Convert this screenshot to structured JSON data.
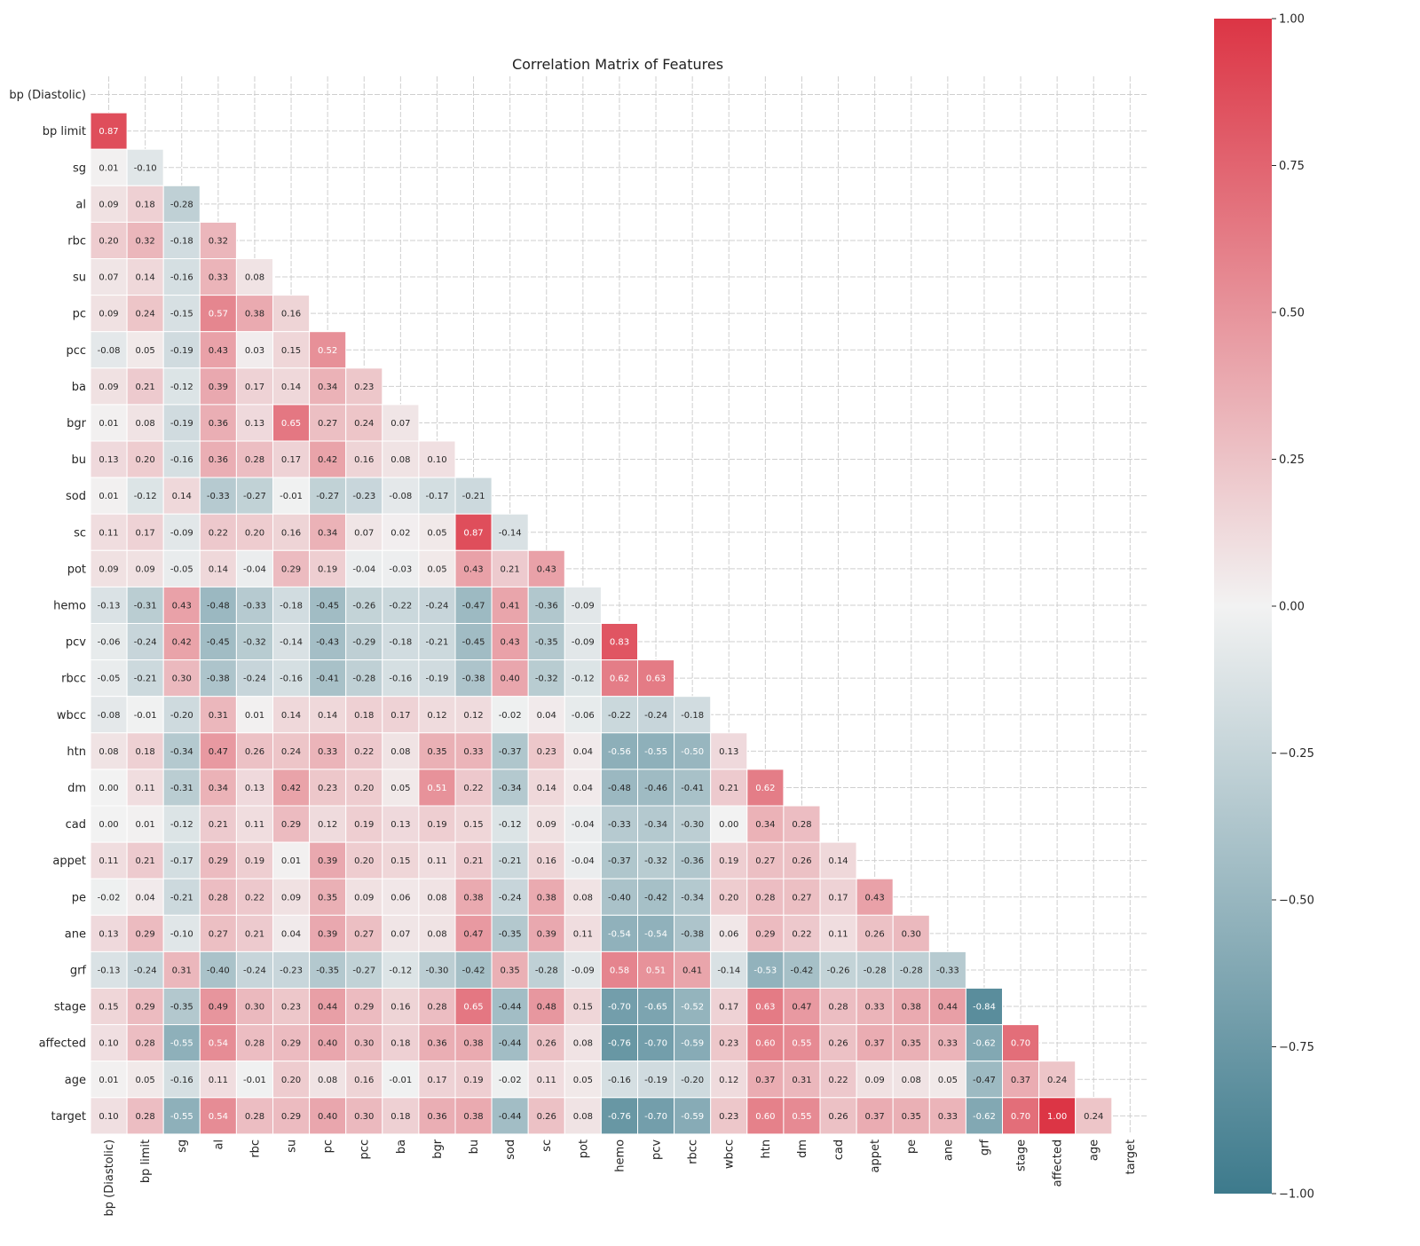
{
  "chart_data": {
    "type": "heatmap",
    "title": "Correlation Matrix of Features",
    "xlabel": "",
    "ylabel": "",
    "labels": [
      "bp (Diastolic)",
      "bp limit",
      "sg",
      "al",
      "rbc",
      "su",
      "pc",
      "pcc",
      "ba",
      "bgr",
      "bu",
      "sod",
      "sc",
      "pot",
      "hemo",
      "pcv",
      "rbcc",
      "wbcc",
      "htn",
      "dm",
      "cad",
      "appet",
      "pe",
      "ane",
      "grf",
      "stage",
      "affected",
      "age",
      "target"
    ],
    "mask": "upper-triangle-including-diagonal",
    "value_format": "2 decimals",
    "lower_triangle": [
      [],
      [
        "0.87"
      ],
      [
        "0.01",
        "-0.10"
      ],
      [
        "0.09",
        "0.18",
        "-0.28"
      ],
      [
        "0.20",
        "0.32",
        "-0.18",
        "0.32"
      ],
      [
        "0.07",
        "0.14",
        "-0.16",
        "0.33",
        "0.08"
      ],
      [
        "0.09",
        "0.24",
        "-0.15",
        "0.57",
        "0.38",
        "0.16"
      ],
      [
        "-0.08",
        "0.05",
        "-0.19",
        "0.43",
        "0.03",
        "0.15",
        "0.52"
      ],
      [
        "0.09",
        "0.21",
        "-0.12",
        "0.39",
        "0.17",
        "0.14",
        "0.34",
        "0.23"
      ],
      [
        "0.01",
        "0.08",
        "-0.19",
        "0.36",
        "0.13",
        "0.65",
        "0.27",
        "0.24",
        "0.07"
      ],
      [
        "0.13",
        "0.20",
        "-0.16",
        "0.36",
        "0.28",
        "0.17",
        "0.42",
        "0.16",
        "0.08",
        "0.10"
      ],
      [
        "0.01",
        "-0.12",
        "0.14",
        "-0.33",
        "-0.27",
        "-0.01",
        "-0.27",
        "-0.23",
        "-0.08",
        "-0.17",
        "-0.21"
      ],
      [
        "0.11",
        "0.17",
        "-0.09",
        "0.22",
        "0.20",
        "0.16",
        "0.34",
        "0.07",
        "0.02",
        "0.05",
        "0.87",
        "-0.14"
      ],
      [
        "0.09",
        "0.09",
        "-0.05",
        "0.14",
        "-0.04",
        "0.29",
        "0.19",
        "-0.04",
        "-0.03",
        "0.05",
        "0.43",
        "0.21",
        "0.43"
      ],
      [
        "-0.13",
        "-0.31",
        "0.43",
        "-0.48",
        "-0.33",
        "-0.18",
        "-0.45",
        "-0.26",
        "-0.22",
        "-0.24",
        "-0.47",
        "0.41",
        "-0.36",
        "-0.09"
      ],
      [
        "-0.06",
        "-0.24",
        "0.42",
        "-0.45",
        "-0.32",
        "-0.14",
        "-0.43",
        "-0.29",
        "-0.18",
        "-0.21",
        "-0.45",
        "0.43",
        "-0.35",
        "-0.09",
        "0.83"
      ],
      [
        "-0.05",
        "-0.21",
        "0.30",
        "-0.38",
        "-0.24",
        "-0.16",
        "-0.41",
        "-0.28",
        "-0.16",
        "-0.19",
        "-0.38",
        "0.40",
        "-0.32",
        "-0.12",
        "0.62",
        "0.63"
      ],
      [
        "-0.08",
        "-0.01",
        "-0.20",
        "0.31",
        "0.01",
        "0.14",
        "0.14",
        "0.18",
        "0.17",
        "0.12",
        "0.12",
        "-0.02",
        "0.04",
        "-0.06",
        "-0.22",
        "-0.24",
        "-0.18"
      ],
      [
        "0.08",
        "0.18",
        "-0.34",
        "0.47",
        "0.26",
        "0.24",
        "0.33",
        "0.22",
        "0.08",
        "0.35",
        "0.33",
        "-0.37",
        "0.23",
        "0.04",
        "-0.56",
        "-0.55",
        "-0.50",
        "0.13"
      ],
      [
        "0.00",
        "0.11",
        "-0.31",
        "0.34",
        "0.13",
        "0.42",
        "0.23",
        "0.20",
        "0.05",
        "0.51",
        "0.22",
        "-0.34",
        "0.14",
        "0.04",
        "-0.48",
        "-0.46",
        "-0.41",
        "0.21",
        "0.62"
      ],
      [
        "0.00",
        "0.01",
        "-0.12",
        "0.21",
        "0.11",
        "0.29",
        "0.12",
        "0.19",
        "0.13",
        "0.19",
        "0.15",
        "-0.12",
        "0.09",
        "-0.04",
        "-0.33",
        "-0.34",
        "-0.30",
        "0.00",
        "0.34",
        "0.28"
      ],
      [
        "0.11",
        "0.21",
        "-0.17",
        "0.29",
        "0.19",
        "0.01",
        "0.39",
        "0.20",
        "0.15",
        "0.11",
        "0.21",
        "-0.21",
        "0.16",
        "-0.04",
        "-0.37",
        "-0.32",
        "-0.36",
        "0.19",
        "0.27",
        "0.26",
        "0.14"
      ],
      [
        "-0.02",
        "0.04",
        "-0.21",
        "0.28",
        "0.22",
        "0.09",
        "0.35",
        "0.09",
        "0.06",
        "0.08",
        "0.38",
        "-0.24",
        "0.38",
        "0.08",
        "-0.40",
        "-0.42",
        "-0.34",
        "0.20",
        "0.28",
        "0.27",
        "0.17",
        "0.43"
      ],
      [
        "0.13",
        "0.29",
        "-0.10",
        "0.27",
        "0.21",
        "0.04",
        "0.39",
        "0.27",
        "0.07",
        "0.08",
        "0.47",
        "-0.35",
        "0.39",
        "0.11",
        "-0.54",
        "-0.54",
        "-0.38",
        "0.06",
        "0.29",
        "0.22",
        "0.11",
        "0.26",
        "0.30"
      ],
      [
        "-0.13",
        "-0.24",
        "0.31",
        "-0.40",
        "-0.24",
        "-0.23",
        "-0.35",
        "-0.27",
        "-0.12",
        "-0.30",
        "-0.42",
        "0.35",
        "-0.28",
        "-0.09",
        "0.58",
        "0.51",
        "0.41",
        "-0.14",
        "-0.53",
        "-0.42",
        "-0.26",
        "-0.28",
        "-0.28",
        "-0.33"
      ],
      [
        "0.15",
        "0.29",
        "-0.35",
        "0.49",
        "0.30",
        "0.23",
        "0.44",
        "0.29",
        "0.16",
        "0.28",
        "0.65",
        "-0.44",
        "0.48",
        "0.15",
        "-0.70",
        "-0.65",
        "-0.52",
        "0.17",
        "0.63",
        "0.47",
        "0.28",
        "0.33",
        "0.38",
        "0.44",
        "-0.84"
      ],
      [
        "0.10",
        "0.28",
        "-0.55",
        "0.54",
        "0.28",
        "0.29",
        "0.40",
        "0.30",
        "0.18",
        "0.36",
        "0.38",
        "-0.44",
        "0.26",
        "0.08",
        "-0.76",
        "-0.70",
        "-0.59",
        "0.23",
        "0.60",
        "0.55",
        "0.26",
        "0.37",
        "0.35",
        "0.33",
        "-0.62",
        "0.70"
      ],
      [
        "0.01",
        "0.05",
        "-0.16",
        "0.11",
        "-0.01",
        "0.20",
        "0.08",
        "0.16",
        "-0.01",
        "0.17",
        "0.19",
        "-0.02",
        "0.11",
        "0.05",
        "-0.16",
        "-0.19",
        "-0.20",
        "0.12",
        "0.37",
        "0.31",
        "0.22",
        "0.09",
        "0.08",
        "0.05",
        "-0.47",
        "0.37",
        "0.24"
      ],
      [
        "0.10",
        "0.28",
        "-0.55",
        "0.54",
        "0.28",
        "0.29",
        "0.40",
        "0.30",
        "0.18",
        "0.36",
        "0.38",
        "-0.44",
        "0.26",
        "0.08",
        "-0.76",
        "-0.70",
        "-0.59",
        "0.23",
        "0.60",
        "0.55",
        "0.26",
        "0.37",
        "0.35",
        "0.33",
        "-0.62",
        "0.70",
        "1.00",
        "0.24"
      ]
    ],
    "colorbar": {
      "vmin": -1.0,
      "vmax": 1.0,
      "ticks": [
        "1.00",
        "0.75",
        "0.50",
        "0.25",
        "0.00",
        "−0.25",
        "−0.50",
        "−0.75",
        "−1.00"
      ],
      "tick_values": [
        1.0,
        0.75,
        0.5,
        0.25,
        0.0,
        -0.25,
        -0.5,
        -0.75,
        -1.0
      ],
      "colors": {
        "low": "#3d7a8c",
        "mid": "#f2f2f2",
        "high": "#dc3545"
      }
    },
    "grid": true,
    "legend": "colorbar-right"
  }
}
